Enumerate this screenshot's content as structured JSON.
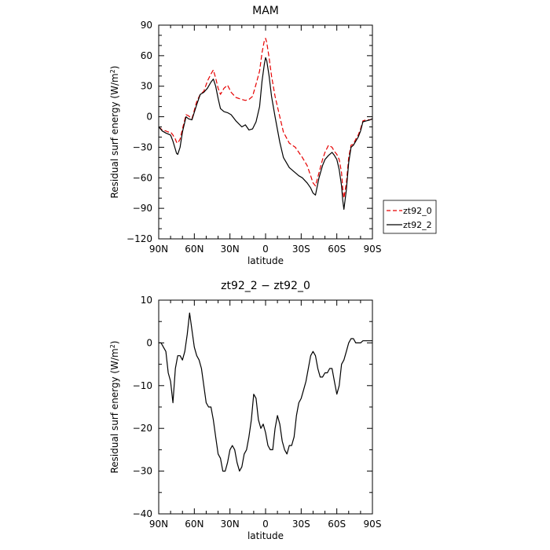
{
  "chart_data": [
    {
      "type": "line",
      "title": "MAM",
      "xlabel": "latitude",
      "ylabel": "Residual surf energy (W/m",
      "ylabel_sup": "2",
      "ylabel_tail": ")",
      "x_ticks": [
        "90N",
        "60N",
        "30N",
        "0",
        "30S",
        "60S",
        "90S"
      ],
      "x_tick_values": [
        90,
        60,
        30,
        0,
        -30,
        -60,
        -90
      ],
      "y_ticks": [
        "90",
        "60",
        "30",
        "0",
        "−30",
        "−60",
        "−90",
        "−120"
      ],
      "y_tick_values": [
        90,
        60,
        30,
        0,
        -30,
        -60,
        -90,
        -120
      ],
      "xlim": [
        90,
        -90
      ],
      "ylim": [
        -120,
        90
      ],
      "legend_position": "outside-right",
      "series": [
        {
          "name": "zt92_0",
          "color": "#e60000",
          "dash": true,
          "x": [
            90,
            87,
            84,
            82,
            80,
            78,
            76,
            75,
            74,
            72,
            70,
            67,
            65,
            62,
            58,
            55,
            52,
            49,
            46,
            44,
            42,
            40,
            38,
            35,
            32,
            29,
            25,
            20,
            17,
            14,
            11,
            8,
            5,
            3,
            1,
            0,
            -1,
            -3,
            -5,
            -8,
            -12,
            -15,
            -20,
            -25,
            -28,
            -31,
            -35,
            -38,
            -40,
            -42,
            -45,
            -48,
            -50,
            -53,
            -56,
            -58,
            -60,
            -62,
            -64,
            -65,
            -66,
            -68,
            -70,
            -72,
            -74,
            -76,
            -78,
            -80,
            -82,
            -85,
            -88,
            -90
          ],
          "y": [
            -10,
            -13,
            -14,
            -15,
            -15,
            -18,
            -22,
            -25,
            -26,
            -22,
            -12,
            2,
            1,
            -2,
            15,
            22,
            25,
            35,
            42,
            46,
            38,
            28,
            22,
            28,
            31,
            24,
            19,
            17,
            16,
            17,
            20,
            32,
            45,
            63,
            75,
            77,
            73,
            58,
            40,
            20,
            0,
            -15,
            -26,
            -30,
            -35,
            -40,
            -48,
            -58,
            -65,
            -68,
            -55,
            -42,
            -35,
            -28,
            -30,
            -34,
            -37,
            -42,
            -55,
            -70,
            -80,
            -65,
            -40,
            -28,
            -27,
            -22,
            -18,
            -12,
            -4,
            -3,
            -3,
            -2
          ]
        },
        {
          "name": "zt92_2",
          "color": "#000000",
          "dash": false,
          "x": [
            90,
            87,
            84,
            82,
            80,
            78,
            76,
            75,
            74,
            72,
            70,
            67,
            65,
            62,
            58,
            55,
            52,
            49,
            46,
            44,
            42,
            40,
            38,
            35,
            32,
            29,
            25,
            20,
            17,
            14,
            11,
            8,
            5,
            3,
            1,
            0,
            -1,
            -3,
            -5,
            -8,
            -12,
            -15,
            -20,
            -25,
            -28,
            -31,
            -35,
            -38,
            -40,
            -42,
            -45,
            -48,
            -50,
            -53,
            -56,
            -58,
            -60,
            -62,
            -64,
            -65,
            -66,
            -68,
            -70,
            -72,
            -74,
            -76,
            -78,
            -80,
            -82,
            -85,
            -88,
            -90
          ],
          "y": [
            -10,
            -14,
            -16,
            -17,
            -18,
            -24,
            -32,
            -36,
            -37,
            -30,
            -15,
            0,
            -2,
            -3,
            12,
            22,
            24,
            28,
            34,
            37,
            30,
            18,
            8,
            5,
            4,
            2,
            -4,
            -10,
            -8,
            -13,
            -12,
            -5,
            10,
            35,
            52,
            58,
            55,
            40,
            20,
            0,
            -25,
            -40,
            -50,
            -55,
            -58,
            -60,
            -65,
            -70,
            -75,
            -77,
            -60,
            -48,
            -42,
            -38,
            -35,
            -38,
            -42,
            -52,
            -68,
            -82,
            -91,
            -72,
            -45,
            -30,
            -28,
            -24,
            -20,
            -14,
            -5,
            -4,
            -3,
            -2
          ]
        }
      ]
    },
    {
      "type": "line",
      "title": "zt92_2 − zt92_0",
      "xlabel": "latitude",
      "ylabel": "Residual surf energy (W/m",
      "ylabel_sup": "2",
      "ylabel_tail": ")",
      "x_ticks": [
        "90N",
        "60N",
        "30N",
        "0",
        "30S",
        "60S",
        "90S"
      ],
      "x_tick_values": [
        90,
        60,
        30,
        0,
        -30,
        -60,
        -90
      ],
      "y_ticks": [
        "10",
        "0",
        "−10",
        "−20",
        "−30",
        "−40"
      ],
      "y_tick_values": [
        10,
        0,
        -10,
        -20,
        -30,
        -40
      ],
      "xlim": [
        90,
        -90
      ],
      "ylim": [
        -40,
        10
      ],
      "series": [
        {
          "color": "#000000",
          "x": [
            90,
            88,
            86,
            84,
            82,
            80,
            78,
            76,
            74,
            72,
            70,
            68,
            66,
            64,
            62,
            60,
            58,
            56,
            54,
            52,
            50,
            48,
            46,
            44,
            42,
            40,
            38,
            36,
            34,
            32,
            30,
            28,
            26,
            24,
            22,
            20,
            18,
            16,
            14,
            12,
            10,
            8,
            6,
            4,
            2,
            0,
            -2,
            -4,
            -6,
            -8,
            -10,
            -12,
            -14,
            -16,
            -18,
            -20,
            -22,
            -24,
            -26,
            -28,
            -30,
            -32,
            -34,
            -36,
            -38,
            -40,
            -42,
            -44,
            -46,
            -48,
            -50,
            -52,
            -54,
            -56,
            -58,
            -60,
            -62,
            -64,
            -66,
            -68,
            -70,
            -72,
            -74,
            -76,
            -78,
            -80,
            -82,
            -84,
            -86,
            -88,
            -90
          ],
          "y": [
            0,
            0,
            -1,
            -2,
            -7,
            -9,
            -14,
            -6,
            -3,
            -3,
            -4,
            -2,
            2,
            7,
            3,
            -1,
            -3,
            -4,
            -6,
            -10,
            -14,
            -15,
            -15,
            -18,
            -22,
            -26,
            -27,
            -30,
            -30,
            -28,
            -25,
            -24,
            -25,
            -28,
            -30,
            -29,
            -26,
            -25,
            -22,
            -18,
            -12,
            -13,
            -18,
            -20,
            -19,
            -21,
            -24,
            -25,
            -25,
            -20,
            -17,
            -19,
            -23,
            -25,
            -26,
            -24,
            -24,
            -22,
            -17,
            -14,
            -13,
            -11,
            -9,
            -6,
            -3,
            -2,
            -3,
            -6,
            -8,
            -8,
            -7,
            -7,
            -6,
            -6,
            -9,
            -12,
            -10,
            -5,
            -4,
            -2,
            0,
            1,
            1,
            0,
            0,
            0,
            0.5,
            0.5,
            0.5,
            0.5,
            0.5
          ]
        }
      ]
    }
  ]
}
